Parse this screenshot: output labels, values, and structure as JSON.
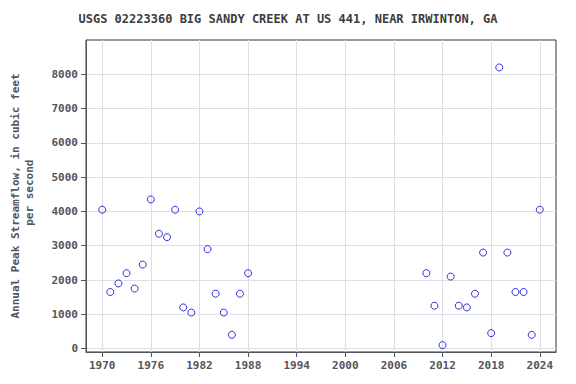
{
  "chart_data": {
    "type": "scatter",
    "title": "USGS 02223360 BIG SANDY CREEK AT US 441, NEAR IRWINTON, GA",
    "ylabel": "Annual Peak Streamflow, in cubic feet\n per second",
    "x": [
      1970,
      1971,
      1972,
      1973,
      1974,
      1975,
      1976,
      1977,
      1978,
      1979,
      1980,
      1981,
      1982,
      1983,
      1984,
      1985,
      1986,
      1987,
      1988,
      2010,
      2011,
      2012,
      2013,
      2014,
      2015,
      2016,
      2017,
      2018,
      2019,
      2020,
      2021,
      2022,
      2023,
      2024
    ],
    "values": [
      4050,
      1650,
      1900,
      2200,
      1750,
      2450,
      4350,
      3350,
      3250,
      4050,
      1200,
      1050,
      4000,
      2900,
      1600,
      1050,
      400,
      1600,
      2200,
      2200,
      1250,
      100,
      2100,
      1250,
      1200,
      1600,
      2800,
      450,
      8200,
      2800,
      1650,
      1650,
      400,
      4050
    ],
    "color": "#0000cc",
    "marker": "open_circle",
    "xlim": [
      1968,
      2026
    ],
    "xticks": [
      1970,
      1976,
      1982,
      1988,
      1994,
      2000,
      2006,
      2012,
      2018,
      2024
    ],
    "ylim": [
      -100,
      9000
    ],
    "yticks": [
      0,
      1000,
      2000,
      3000,
      4000,
      5000,
      6000,
      7000,
      8000
    ],
    "grid": true
  }
}
